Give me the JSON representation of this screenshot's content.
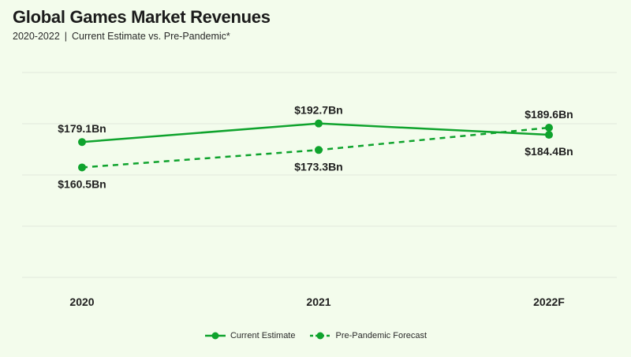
{
  "header": {
    "title": "Global Games Market Revenues",
    "subtitle_years": "2020-2022",
    "subtitle_sep": "|",
    "subtitle_desc": "Current Estimate vs. Pre-Pandemic*"
  },
  "colors": {
    "accent": "#0fa32d",
    "grid": "#e2e8dc",
    "background": "#f3fcec"
  },
  "chart_data": {
    "type": "line",
    "title": "Global Games Market Revenues",
    "subtitle": "2020-2022 | Current Estimate vs. Pre-Pandemic*",
    "categories": [
      "2020",
      "2021",
      "2022F"
    ],
    "series": [
      {
        "name": "Current Estimate",
        "style": "solid",
        "values": [
          179.1,
          192.7,
          184.4
        ],
        "labels": [
          "$179.1Bn",
          "$192.7Bn",
          "$184.4Bn"
        ],
        "label_positions": [
          "above",
          "above",
          "below"
        ]
      },
      {
        "name": "Pre-Pandemic Forecast",
        "style": "dashed",
        "values": [
          160.5,
          173.3,
          189.6
        ],
        "labels": [
          "$160.5Bn",
          "$173.3Bn",
          "$189.6Bn"
        ],
        "label_positions": [
          "below",
          "below",
          "above"
        ]
      }
    ],
    "ylim": [
      80,
      230
    ],
    "grid": true,
    "legend_position": "bottom"
  }
}
